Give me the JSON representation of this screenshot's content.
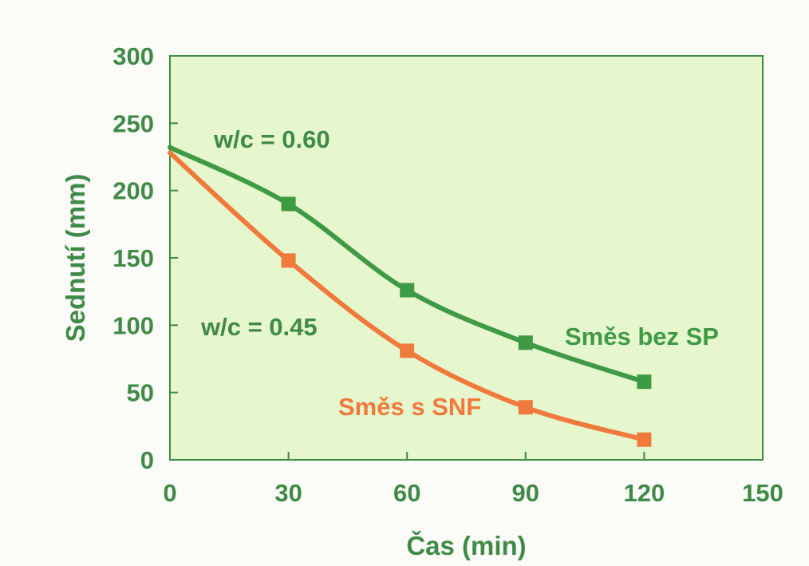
{
  "chart_data": {
    "type": "line",
    "title": "",
    "xlabel": "Čas (min)",
    "ylabel": "Sednutí (mm)",
    "xlim": [
      0,
      150
    ],
    "ylim": [
      0,
      300
    ],
    "x_ticks": [
      "0",
      "30",
      "60",
      "90",
      "120",
      "150"
    ],
    "y_ticks": [
      "0",
      "50",
      "100",
      "150",
      "200",
      "250",
      "300"
    ],
    "grid": false,
    "background_color": "#e6f6cd",
    "axis_color": "#3f8a46",
    "series": [
      {
        "name": "Směs bez SP",
        "color": "#3f9a46",
        "x": [
          0,
          30,
          60,
          90,
          120
        ],
        "y": [
          232,
          190,
          126,
          87,
          58
        ]
      },
      {
        "name": "Směs s SNF",
        "color": "#f07a3c",
        "x": [
          0,
          30,
          60,
          90,
          120
        ],
        "y": [
          228,
          148,
          81,
          39,
          15
        ]
      }
    ],
    "annotations": [
      {
        "text": "w/c = 0.60",
        "color": "#3f8a46"
      },
      {
        "text": "w/c = 0.45",
        "color": "#3f8a46"
      },
      {
        "text": "Směs bez SP",
        "color": "#3f9a46"
      },
      {
        "text": "Směs s SNF",
        "color": "#f07a3c"
      }
    ]
  }
}
